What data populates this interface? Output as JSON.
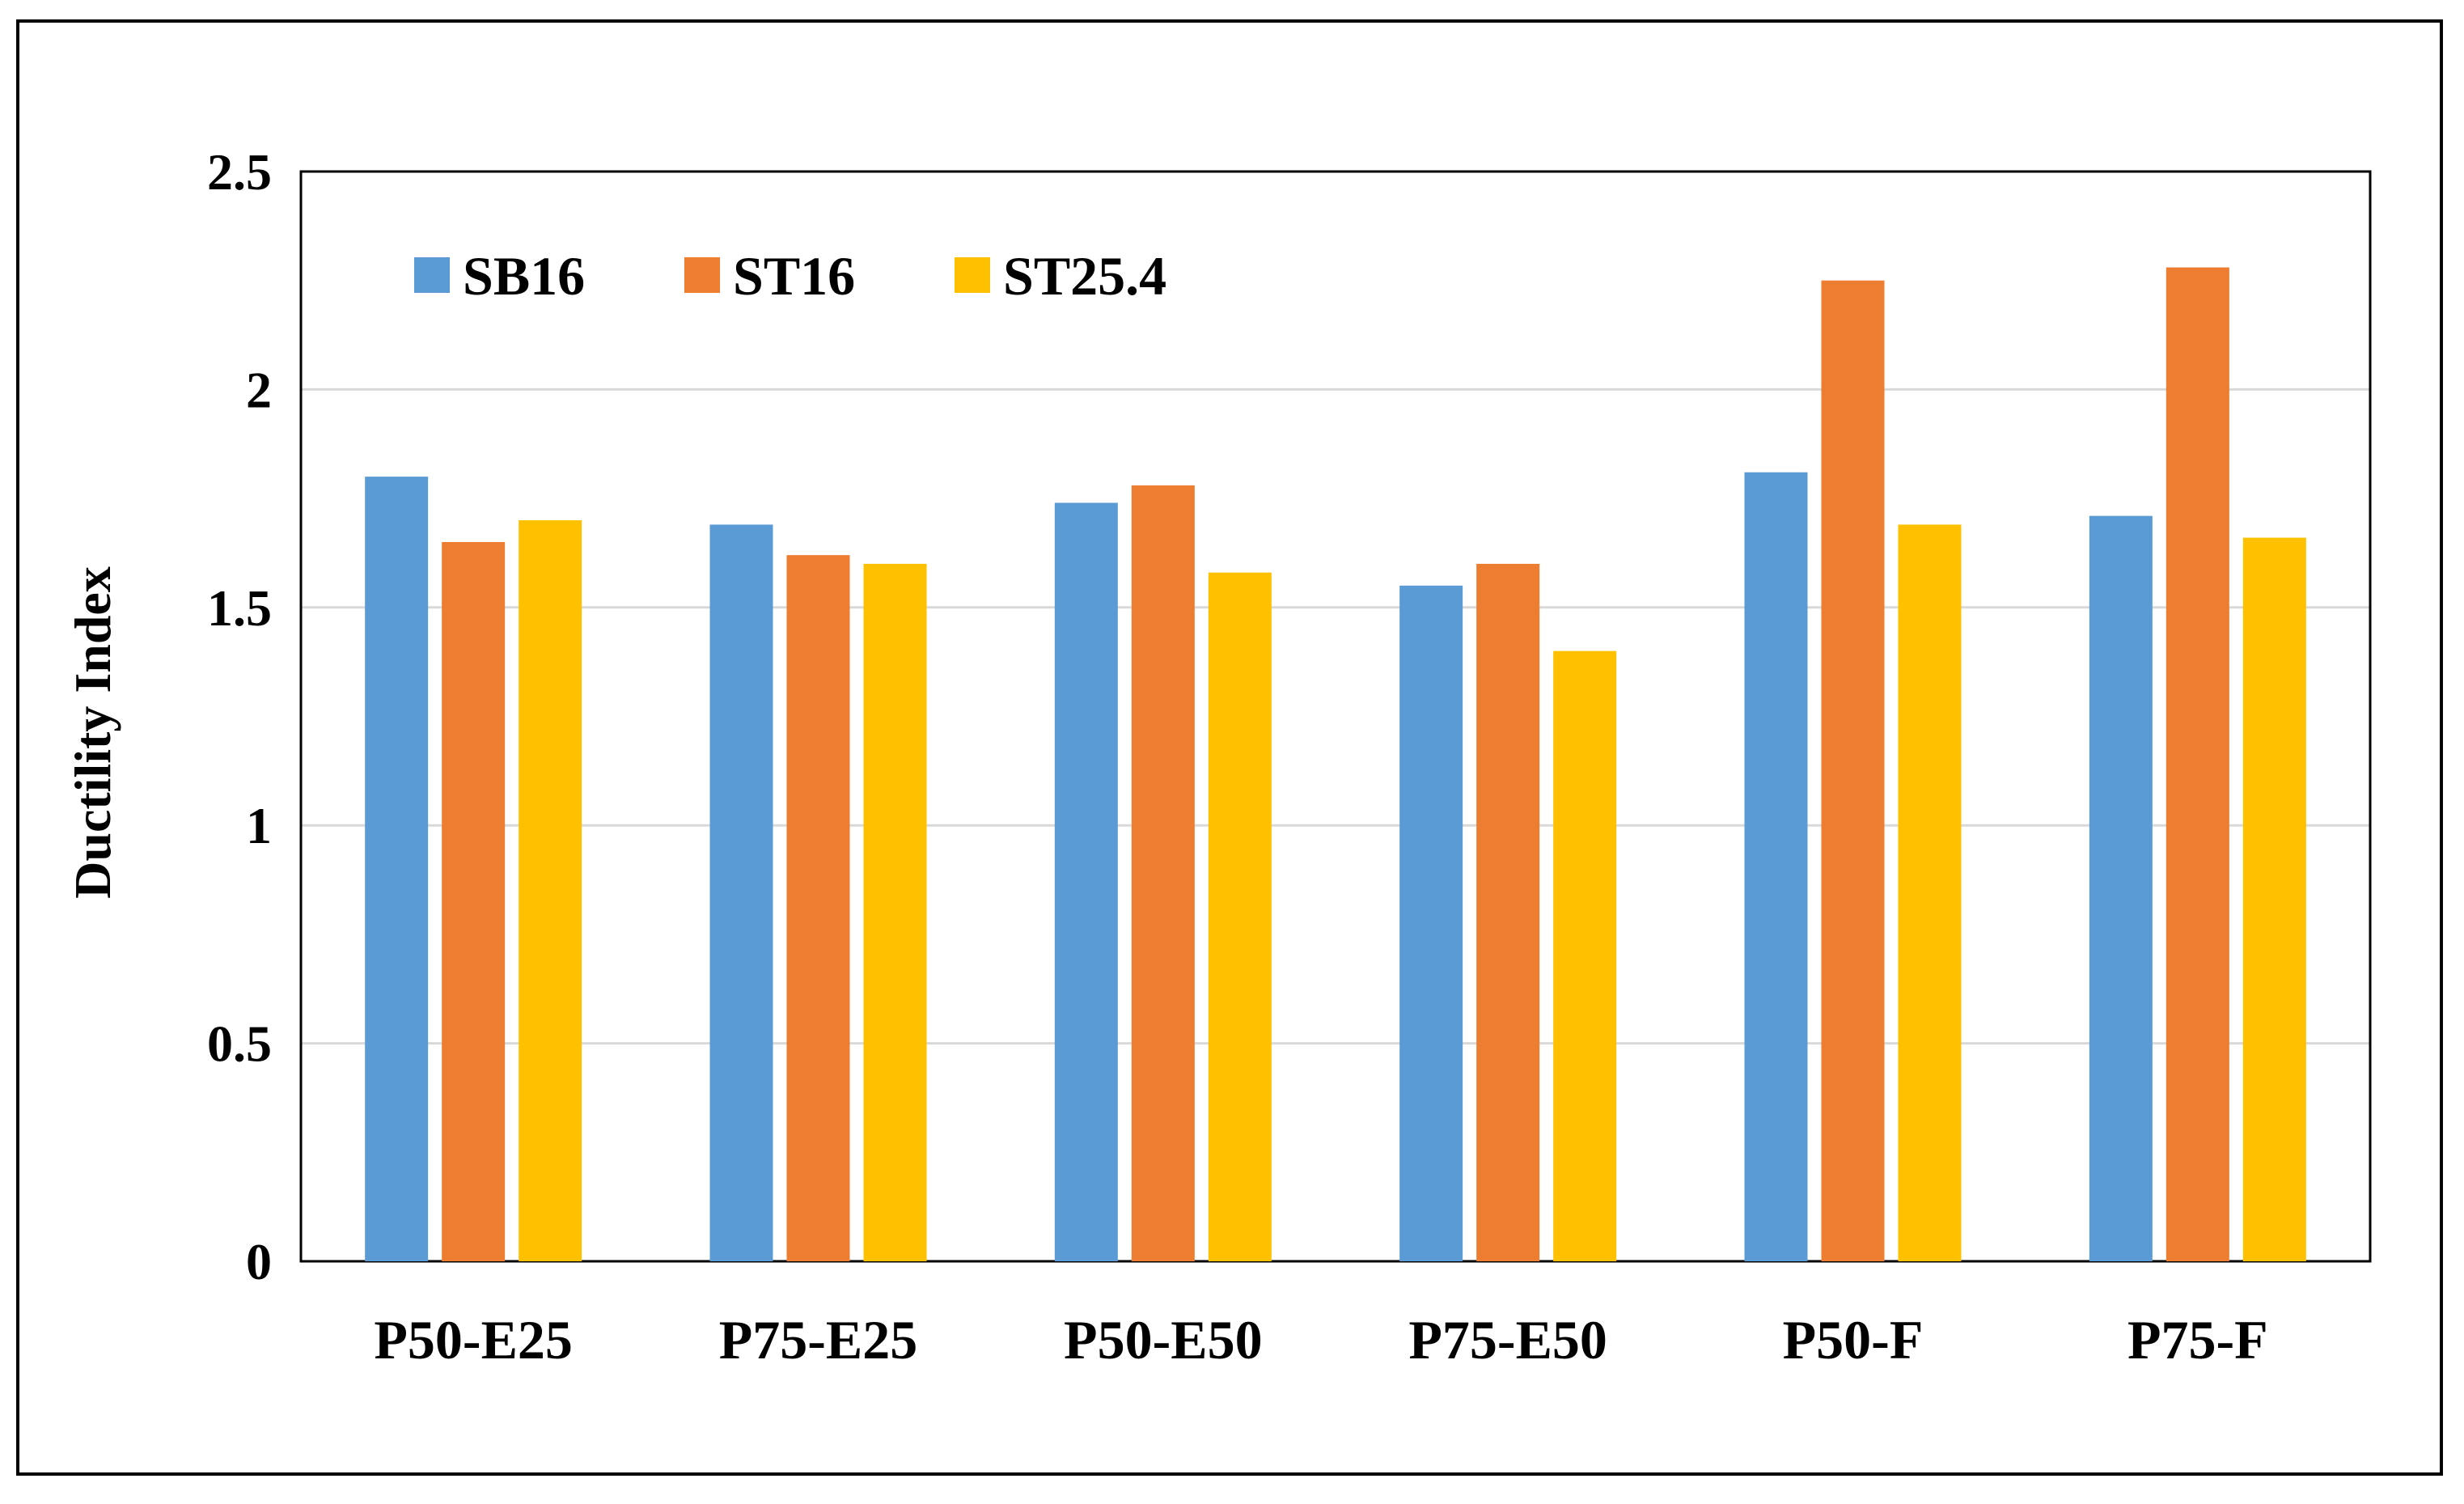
{
  "chart_data": {
    "type": "bar",
    "title": "",
    "xlabel": "",
    "ylabel": "Ductility Index",
    "ylim": [
      0,
      2.5
    ],
    "yticks": [
      "0",
      "0.5",
      "1",
      "1.5",
      "2",
      "2.5"
    ],
    "ytick_values": [
      0,
      0.5,
      1,
      1.5,
      2,
      2.5
    ],
    "grid": true,
    "legend_position": "top-left",
    "categories": [
      "P50-E25",
      "P75-E25",
      "P50-E50",
      "P75-E50",
      "P50-F",
      "P75-F"
    ],
    "series": [
      {
        "name": "SB16",
        "color": "#5B9BD5",
        "values": [
          1.8,
          1.69,
          1.74,
          1.55,
          1.81,
          1.71
        ]
      },
      {
        "name": "ST16",
        "color": "#ED7D31",
        "values": [
          1.65,
          1.62,
          1.78,
          1.6,
          2.25,
          2.28
        ]
      },
      {
        "name": "ST25.4",
        "color": "#FFC000",
        "values": [
          1.7,
          1.6,
          1.58,
          1.4,
          1.69,
          1.66
        ]
      }
    ]
  }
}
